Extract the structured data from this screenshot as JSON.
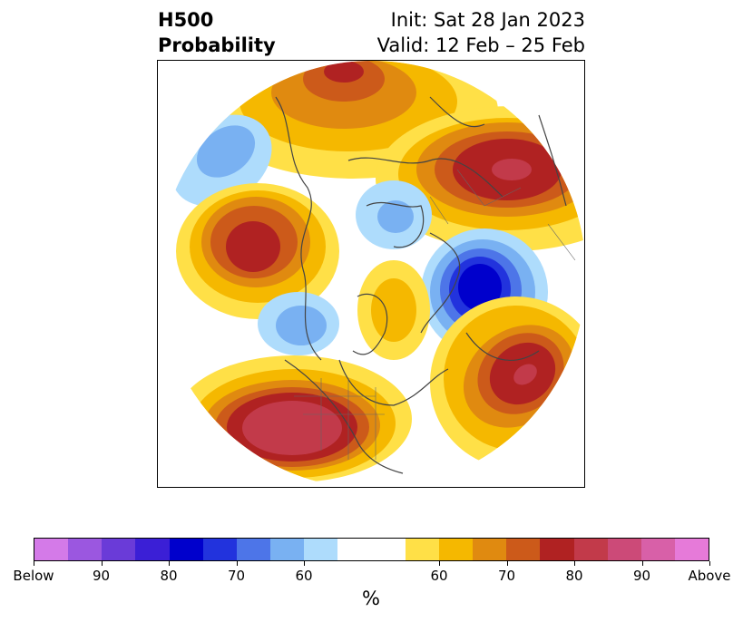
{
  "title": {
    "left_line1": "H500",
    "left_line2": "Probability",
    "right_line1": "Init: Sat 28 Jan 2023",
    "right_line2": "Valid: 12 Feb – 25 Feb"
  },
  "colorbar": {
    "unit": "%",
    "segments": [
      "#d47ae8",
      "#9b57e0",
      "#6a3bd8",
      "#3b1fd6",
      "#0000cc",
      "#2233dd",
      "#4d75e8",
      "#79b1f2",
      "#aedcfc",
      "#ffffff",
      "#ffffff",
      "#ffe047",
      "#f5b800",
      "#e08a10",
      "#cc5a1a",
      "#b02222",
      "#c23a4a",
      "#cc4a78",
      "#d860a8",
      "#e67ad9"
    ],
    "labels": [
      "Below",
      "90",
      "80",
      "70",
      "60",
      "60",
      "70",
      "80",
      "90",
      "Above"
    ]
  },
  "map": {
    "projection": "polar stereographic (North Pole)",
    "anomalies": [
      {
        "name": "siberia-above",
        "color": "#b02222"
      },
      {
        "name": "greenland-above",
        "color": "#cc5a1a"
      },
      {
        "name": "alaska-above",
        "color": "#b02222"
      },
      {
        "name": "north-atlantic-below",
        "color": "#0000cc"
      },
      {
        "name": "southwest-us-above",
        "color": "#c23a4a"
      },
      {
        "name": "east-pacific-above",
        "color": "#c23a4a"
      },
      {
        "name": "hudson-below",
        "color": "#4d75e8"
      }
    ]
  }
}
